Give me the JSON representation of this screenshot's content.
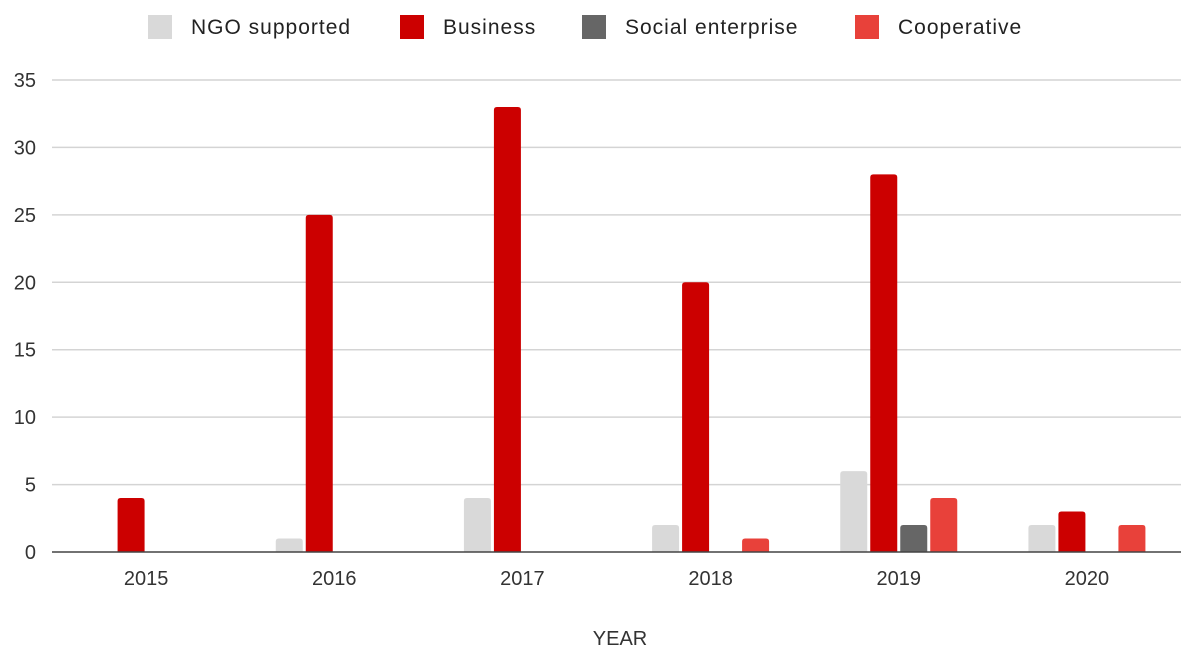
{
  "chart_data": {
    "type": "bar",
    "categories": [
      "2015",
      "2016",
      "2017",
      "2018",
      "2019",
      "2020"
    ],
    "series": [
      {
        "name": "NGO supported",
        "color": "#d9d9d9",
        "values": [
          0,
          1,
          4,
          2,
          6,
          2
        ]
      },
      {
        "name": "Business",
        "color": "#cc0000",
        "values": [
          4,
          25,
          33,
          20,
          28,
          3
        ]
      },
      {
        "name": "Social enterprise",
        "color": "#666666",
        "values": [
          0,
          0,
          0,
          0,
          2,
          0
        ]
      },
      {
        "name": "Cooperative",
        "color": "#e8413a",
        "values": [
          0,
          0,
          0,
          1,
          4,
          2
        ]
      }
    ],
    "xlabel": "YEAR",
    "ylabel": "",
    "ylim": [
      0,
      35
    ],
    "yticks": [
      "0",
      "5",
      "10",
      "15",
      "20",
      "25",
      "30",
      "35"
    ],
    "grid": true,
    "legend_position": "top"
  }
}
